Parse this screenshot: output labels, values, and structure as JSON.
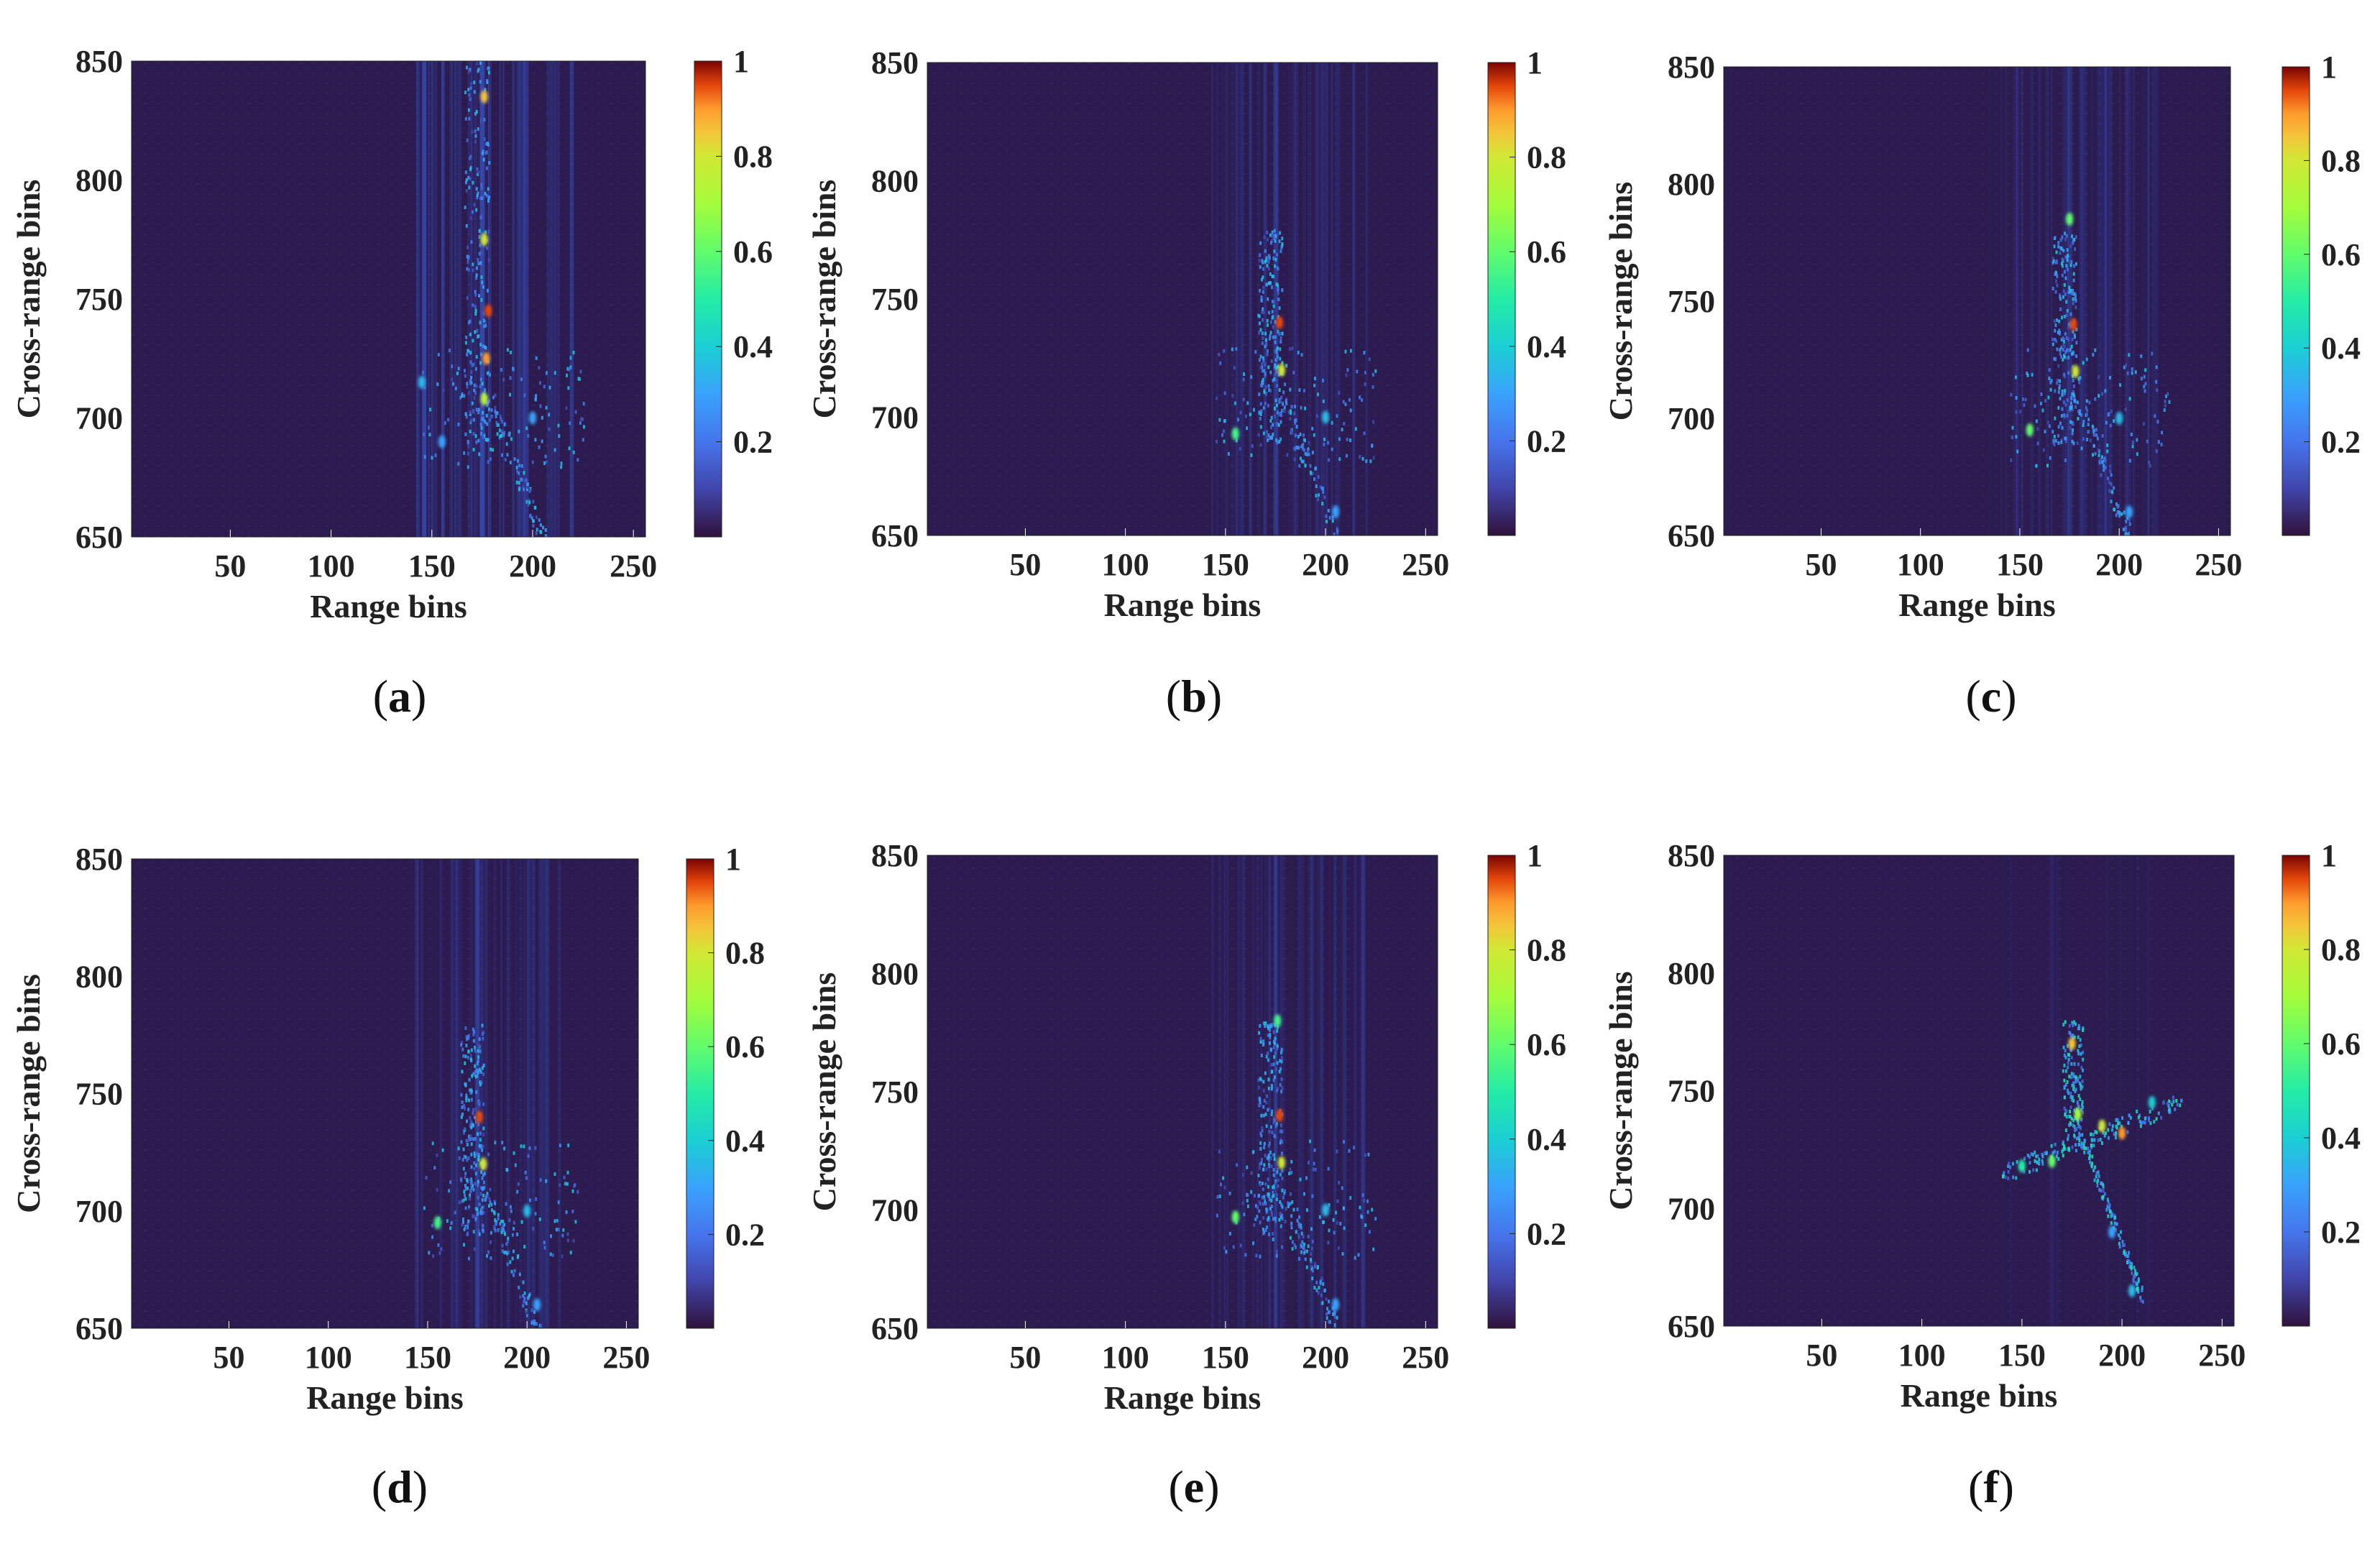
{
  "chart_data": [
    {
      "type": "heatmap",
      "panel": "a",
      "caption_letter": "a",
      "xlabel": "Range bins",
      "ylabel": "Cross-range bins",
      "xlim": [
        1,
        256
      ],
      "ylim": [
        650,
        850
      ],
      "x_ticks": [
        50,
        100,
        150,
        200,
        250
      ],
      "y_ticks": [
        650,
        700,
        750,
        800,
        850
      ],
      "colorbar_range": [
        0,
        1
      ],
      "colorbar_ticks": [
        0.2,
        0.4,
        0.6,
        0.8,
        1
      ],
      "description_of_content": "defocused streaks",
      "hotspots": [
        {
          "x": 176,
          "y": 835,
          "v": 0.85
        },
        {
          "x": 176,
          "y": 775,
          "v": 0.8
        },
        {
          "x": 178,
          "y": 745,
          "v": 0.95
        },
        {
          "x": 177,
          "y": 725,
          "v": 0.9
        },
        {
          "x": 176,
          "y": 708,
          "v": 0.75
        },
        {
          "x": 145,
          "y": 715,
          "v": 0.35
        },
        {
          "x": 155,
          "y": 690,
          "v": 0.3
        },
        {
          "x": 200,
          "y": 700,
          "v": 0.3
        }
      ]
    },
    {
      "type": "heatmap",
      "panel": "b",
      "caption_letter": "b",
      "xlabel": "Range bins",
      "ylabel": "Cross-range bins",
      "xlim": [
        1,
        256
      ],
      "ylim": [
        650,
        850
      ],
      "x_ticks": [
        50,
        100,
        150,
        200,
        250
      ],
      "y_ticks": [
        650,
        700,
        750,
        800,
        850
      ],
      "colorbar_range": [
        0,
        1
      ],
      "colorbar_ticks": [
        0.2,
        0.4,
        0.6,
        0.8,
        1
      ],
      "hotspots": [
        {
          "x": 177,
          "y": 740,
          "v": 0.95
        },
        {
          "x": 178,
          "y": 720,
          "v": 0.8
        },
        {
          "x": 155,
          "y": 693,
          "v": 0.55
        },
        {
          "x": 200,
          "y": 700,
          "v": 0.35
        },
        {
          "x": 205,
          "y": 660,
          "v": 0.3
        }
      ]
    },
    {
      "type": "heatmap",
      "panel": "c",
      "caption_letter": "c",
      "xlabel": "Range bins",
      "ylabel": "Cross-range bins",
      "xlim": [
        1,
        256
      ],
      "ylim": [
        650,
        850
      ],
      "x_ticks": [
        50,
        100,
        150,
        200,
        250
      ],
      "y_ticks": [
        650,
        700,
        750,
        800,
        850
      ],
      "colorbar_range": [
        0,
        1
      ],
      "colorbar_ticks": [
        0.2,
        0.4,
        0.6,
        0.8,
        1
      ],
      "hotspots": [
        {
          "x": 175,
          "y": 785,
          "v": 0.6
        },
        {
          "x": 177,
          "y": 740,
          "v": 0.95
        },
        {
          "x": 178,
          "y": 720,
          "v": 0.8
        },
        {
          "x": 155,
          "y": 695,
          "v": 0.6
        },
        {
          "x": 200,
          "y": 700,
          "v": 0.35
        },
        {
          "x": 205,
          "y": 660,
          "v": 0.3
        }
      ]
    },
    {
      "type": "heatmap",
      "panel": "d",
      "caption_letter": "d",
      "xlabel": "Range bins",
      "ylabel": "Cross-range bins",
      "xlim": [
        1,
        256
      ],
      "ylim": [
        650,
        850
      ],
      "x_ticks": [
        50,
        100,
        150,
        200,
        250
      ],
      "y_ticks": [
        650,
        700,
        750,
        800,
        850
      ],
      "colorbar_range": [
        0,
        1
      ],
      "colorbar_ticks": [
        0.2,
        0.4,
        0.6,
        0.8,
        1
      ],
      "hotspots": [
        {
          "x": 176,
          "y": 740,
          "v": 0.95
        },
        {
          "x": 178,
          "y": 720,
          "v": 0.8
        },
        {
          "x": 155,
          "y": 695,
          "v": 0.55
        },
        {
          "x": 200,
          "y": 700,
          "v": 0.35
        },
        {
          "x": 205,
          "y": 660,
          "v": 0.3
        }
      ]
    },
    {
      "type": "heatmap",
      "panel": "e",
      "caption_letter": "e",
      "xlabel": "Range bins",
      "ylabel": "Cross-range bins",
      "xlim": [
        1,
        256
      ],
      "ylim": [
        650,
        850
      ],
      "x_ticks": [
        50,
        100,
        150,
        200,
        250
      ],
      "y_ticks": [
        650,
        700,
        750,
        800,
        850
      ],
      "colorbar_range": [
        0,
        1
      ],
      "colorbar_ticks": [
        0.2,
        0.4,
        0.6,
        0.8,
        1
      ],
      "hotspots": [
        {
          "x": 176,
          "y": 780,
          "v": 0.55
        },
        {
          "x": 177,
          "y": 740,
          "v": 0.95
        },
        {
          "x": 178,
          "y": 720,
          "v": 0.8
        },
        {
          "x": 155,
          "y": 697,
          "v": 0.6
        },
        {
          "x": 200,
          "y": 700,
          "v": 0.35
        },
        {
          "x": 205,
          "y": 660,
          "v": 0.3
        }
      ]
    },
    {
      "type": "heatmap",
      "panel": "f",
      "caption_letter": "f",
      "xlabel": "Range bins",
      "ylabel": "Cross-range bins",
      "xlim": [
        1,
        256
      ],
      "ylim": [
        650,
        850
      ],
      "x_ticks": [
        50,
        100,
        150,
        200,
        250
      ],
      "y_ticks": [
        650,
        700,
        750,
        800,
        850
      ],
      "colorbar_range": [
        0,
        1
      ],
      "colorbar_ticks": [
        0.2,
        0.4,
        0.6,
        0.8,
        1
      ],
      "hotspots": [
        {
          "x": 175,
          "y": 770,
          "v": 0.85
        },
        {
          "x": 178,
          "y": 740,
          "v": 0.7
        },
        {
          "x": 190,
          "y": 735,
          "v": 0.8
        },
        {
          "x": 200,
          "y": 732,
          "v": 0.9
        },
        {
          "x": 165,
          "y": 720,
          "v": 0.6
        },
        {
          "x": 150,
          "y": 718,
          "v": 0.5
        },
        {
          "x": 215,
          "y": 745,
          "v": 0.4
        },
        {
          "x": 195,
          "y": 690,
          "v": 0.3
        },
        {
          "x": 205,
          "y": 665,
          "v": 0.35
        }
      ]
    }
  ],
  "caption_format": {
    "open": "(",
    "close": ")"
  }
}
